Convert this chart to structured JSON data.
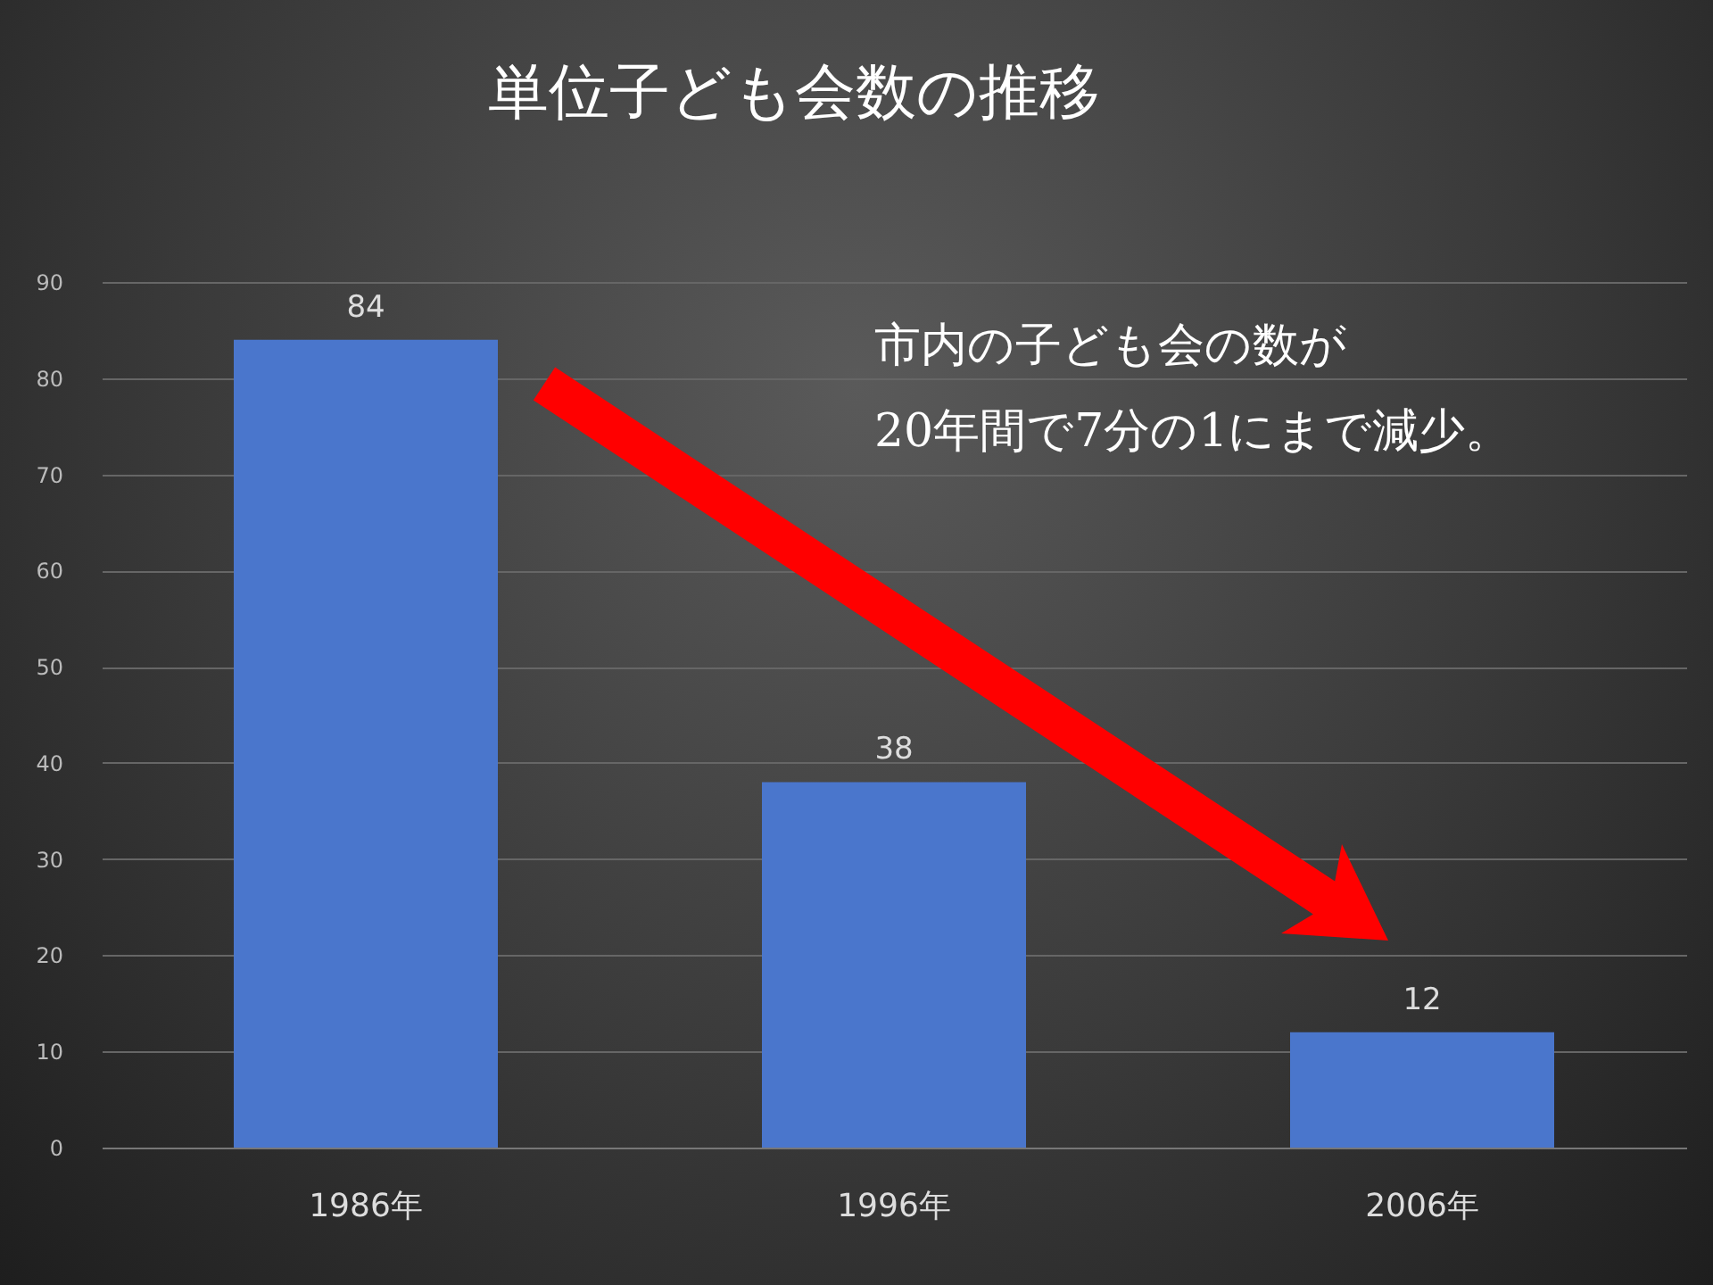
{
  "chart_data": {
    "type": "bar",
    "title": "単位子ども会数の推移",
    "categories": [
      "1986年",
      "1996年",
      "2006年"
    ],
    "values": [
      84,
      38,
      12
    ],
    "color": "#4a76cc",
    "ylim": [
      0,
      90
    ],
    "yticks": [
      0,
      10,
      20,
      30,
      40,
      50,
      60,
      70,
      80,
      90
    ],
    "grid": true,
    "data_labels": true,
    "annotations": [
      "市内の子ども会の数が\n20年間で7分の1にまで減少。"
    ]
  }
}
